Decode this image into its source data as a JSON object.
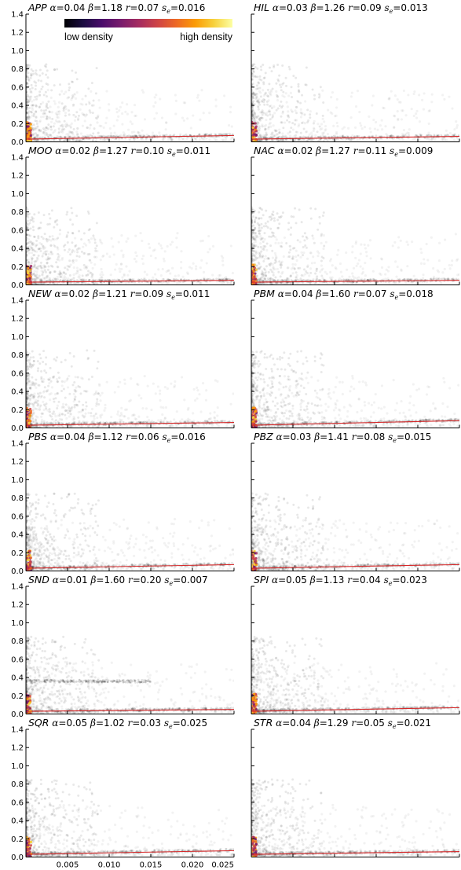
{
  "colorbar": {
    "low_label": "low density",
    "high_label": "high density",
    "colors": [
      "#000004",
      "#1b0c41",
      "#4a0c6b",
      "#781c6d",
      "#a52c60",
      "#cf4446",
      "#ed6925",
      "#fb9b06",
      "#f7d13d",
      "#fcffa4"
    ]
  },
  "chart_data": {
    "type": "scatter",
    "xlim": [
      0,
      0.025
    ],
    "ylim": [
      0,
      1.4
    ],
    "x_ticks": [
      "0.005",
      "0.010",
      "0.015",
      "0.020",
      "0.025"
    ],
    "y_ticks": [
      "0.0",
      "0.2",
      "0.4",
      "0.6",
      "0.8",
      "1.0",
      "1.2",
      "1.4"
    ],
    "grid": false,
    "fit_line_color": "#d62728",
    "alpha_symbol": "α",
    "beta_symbol": "β",
    "r_symbol": "r",
    "s_symbol": "s",
    "s_subscript": "e",
    "panels": [
      {
        "code": "APP",
        "alpha": "0.04",
        "beta": "1.18",
        "r": "0.07",
        "se": "0.016",
        "fit_end": 0.07
      },
      {
        "code": "HIL",
        "alpha": "0.03",
        "beta": "1.26",
        "r": "0.09",
        "se": "0.013",
        "fit_end": 0.06
      },
      {
        "code": "MOO",
        "alpha": "0.02",
        "beta": "1.27",
        "r": "0.10",
        "se": "0.011",
        "fit_end": 0.05
      },
      {
        "code": "NAC",
        "alpha": "0.02",
        "beta": "1.27",
        "r": "0.11",
        "se": "0.009",
        "fit_end": 0.05
      },
      {
        "code": "NEW",
        "alpha": "0.02",
        "beta": "1.21",
        "r": "0.09",
        "se": "0.011",
        "fit_end": 0.06
      },
      {
        "code": "PBM",
        "alpha": "0.04",
        "beta": "1.60",
        "r": "0.07",
        "se": "0.018",
        "fit_end": 0.08
      },
      {
        "code": "PBS",
        "alpha": "0.04",
        "beta": "1.12",
        "r": "0.06",
        "se": "0.016",
        "fit_end": 0.07
      },
      {
        "code": "PBZ",
        "alpha": "0.03",
        "beta": "1.41",
        "r": "0.08",
        "se": "0.015",
        "fit_end": 0.07
      },
      {
        "code": "SND",
        "alpha": "0.01",
        "beta": "1.60",
        "r": "0.20",
        "se": "0.007",
        "fit_end": 0.05
      },
      {
        "code": "SPI",
        "alpha": "0.05",
        "beta": "1.13",
        "r": "0.04",
        "se": "0.023",
        "fit_end": 0.07
      },
      {
        "code": "SQR",
        "alpha": "0.05",
        "beta": "1.02",
        "r": "0.03",
        "se": "0.025",
        "fit_end": 0.07
      },
      {
        "code": "STR",
        "alpha": "0.04",
        "beta": "1.29",
        "r": "0.05",
        "se": "0.021",
        "fit_end": 0.06
      }
    ]
  }
}
